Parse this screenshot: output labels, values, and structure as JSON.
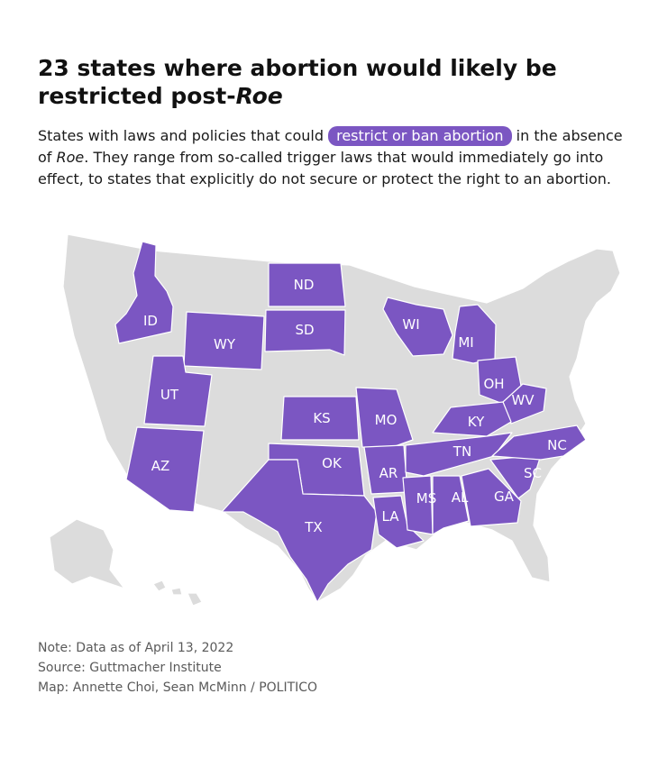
{
  "title": {
    "text_main": "23 states where abortion would likely be restricted post-",
    "text_italic": "Roe"
  },
  "description": {
    "part1": "States with laws and policies that could ",
    "highlight": "restrict or ban abortion",
    "part2": " in the absence of ",
    "italic": "Roe",
    "part3": ". They range from so-called trigger laws that would immediately go into effect, to states that explicitly do not secure or protect the right to an abortion."
  },
  "colors": {
    "restricted": "#7b56c2",
    "other": "#dcdcdc",
    "border": "#ffffff",
    "highlight": "#7b56c2"
  },
  "map": {
    "restricted_states": [
      "ID",
      "WY",
      "ND",
      "SD",
      "UT",
      "AZ",
      "WI",
      "MI",
      "OH",
      "WV",
      "KY",
      "KS",
      "MO",
      "OK",
      "TX",
      "AR",
      "LA",
      "MS",
      "AL",
      "TN",
      "GA",
      "SC",
      "NC"
    ]
  },
  "notes": {
    "note": "Note: Data as of April 13, 2022",
    "source": "Source: Guttmacher Institute",
    "credit": "Map: Annette Choi, Sean McMinn / POLITICO"
  }
}
